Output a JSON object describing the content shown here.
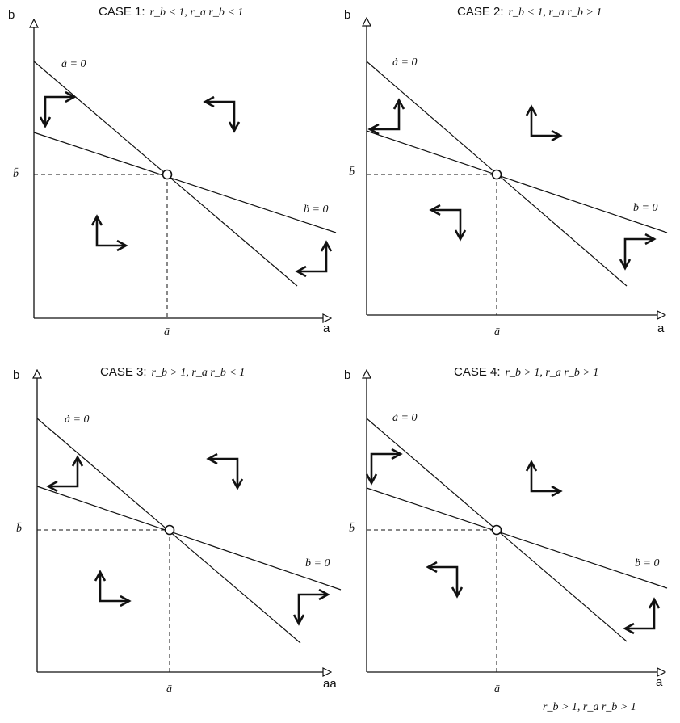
{
  "panels": [
    {
      "title": "CASE 1:",
      "condition": "r_b < 1, r_a r_b < 1",
      "y_axis_label": "b",
      "x_axis_label": "a",
      "a_nullcline": "ȧ = 0",
      "b_nullcline": "ḃ = 0",
      "a_star": "ā",
      "b_star": "b̄",
      "icons": [
        "right-up-arrow-icon",
        "left-down-arrow-icon",
        "right-up-arrow-icon",
        "left-down-arrow-icon"
      ]
    },
    {
      "title": "CASE 2:",
      "condition": "r_b < 1, r_a r_b > 1",
      "y_axis_label": "b",
      "x_axis_label": "a",
      "a_nullcline": "ȧ = 0",
      "b_nullcline": "ḃ = 0",
      "a_star": "ā",
      "b_star": "b̄",
      "icons": [
        "right-up-arrow-icon",
        "right-up-arrow-icon",
        "left-down-arrow-icon",
        "right-down-arrow-icon"
      ]
    },
    {
      "title": "CASE 3:",
      "condition": "r_b > 1, r_a r_b < 1",
      "y_axis_label": "b",
      "x_axis_label": "aa",
      "a_nullcline": "ȧ = 0",
      "b_nullcline": "ḃ = 0",
      "a_star": "ā",
      "b_star": "b̄",
      "icons": [
        "left-up-arrow-icon",
        "left-down-arrow-icon",
        "right-up-arrow-icon",
        "right-down-arrow-icon"
      ]
    },
    {
      "title": "CASE 4:",
      "condition": "r_b > 1, r_a r_b > 1",
      "y_axis_label": "b",
      "x_axis_label": "a",
      "a_nullcline": "ȧ = 0",
      "b_nullcline": "ḃ = 0",
      "a_star": "ā",
      "b_star": "b̄",
      "icons": [
        "right-down-arrow-icon",
        "right-up-arrow-icon",
        "left-down-arrow-icon",
        "left-up-arrow-icon"
      ]
    }
  ],
  "footer_condition": "r_b > 1, r_a r_b > 1"
}
